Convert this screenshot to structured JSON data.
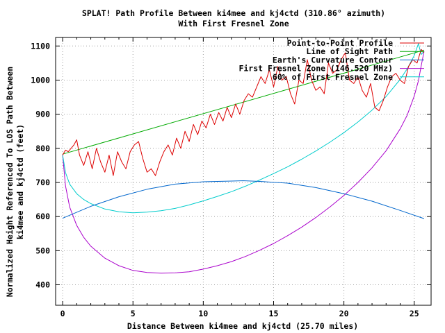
{
  "chart_data": {
    "type": "line",
    "title": "SPLAT! Path Profile Between ki4mee and kj4ctd (310.86° azimuth)",
    "subtitle": "With First Fresnel Zone",
    "xlabel": "Distance Between ki4mee and kj4ctd (25.70 miles)",
    "ylabel_line1": "Normalized Height Referenced To LOS Path Between",
    "ylabel_line2": "ki4mee and kj4ctd (feet)",
    "xlim": [
      -0.5,
      26.2
    ],
    "ylim": [
      340,
      1125
    ],
    "xticks": [
      0,
      5,
      10,
      15,
      20,
      25
    ],
    "yticks": [
      400,
      500,
      600,
      700,
      800,
      900,
      1000,
      1100
    ],
    "grid": true,
    "legend_position": "top-right",
    "colors": {
      "profile": "#dd0000",
      "los": "#00aa00",
      "earth": "#0066cc",
      "fresnel": "#aa00cc",
      "fresnel60": "#00cccc"
    },
    "series": [
      {
        "key": "profile",
        "name": "Point-to-Point Profile",
        "x": [
          0,
          0.2,
          0.4,
          0.6,
          0.8,
          1.0,
          1.2,
          1.5,
          1.8,
          2.1,
          2.4,
          2.7,
          3.0,
          3.3,
          3.6,
          3.9,
          4.2,
          4.5,
          4.8,
          5.1,
          5.4,
          5.7,
          6.0,
          6.3,
          6.6,
          6.9,
          7.2,
          7.5,
          7.8,
          8.1,
          8.4,
          8.7,
          9.0,
          9.3,
          9.6,
          9.9,
          10.2,
          10.5,
          10.8,
          11.1,
          11.4,
          11.7,
          12.0,
          12.3,
          12.6,
          12.9,
          13.2,
          13.5,
          13.8,
          14.1,
          14.4,
          14.7,
          15.0,
          15.3,
          15.6,
          15.9,
          16.2,
          16.5,
          16.8,
          17.1,
          17.4,
          17.7,
          18.0,
          18.3,
          18.6,
          18.9,
          19.2,
          19.5,
          19.8,
          20.1,
          20.4,
          20.7,
          21.0,
          21.3,
          21.6,
          21.9,
          22.2,
          22.5,
          22.8,
          23.1,
          23.4,
          23.7,
          24.0,
          24.3,
          24.6,
          24.9,
          25.2,
          25.5,
          25.7
        ],
        "y": [
          780,
          795,
          790,
          800,
          810,
          825,
          780,
          750,
          790,
          740,
          800,
          760,
          730,
          780,
          720,
          790,
          760,
          740,
          790,
          810,
          820,
          770,
          730,
          740,
          720,
          760,
          790,
          810,
          780,
          830,
          800,
          850,
          820,
          870,
          840,
          880,
          860,
          900,
          870,
          905,
          880,
          920,
          890,
          930,
          900,
          940,
          960,
          950,
          980,
          1010,
          990,
          1030,
          980,
          1040,
          1000,
          1010,
          960,
          930,
          1000,
          990,
          1060,
          1000,
          970,
          980,
          960,
          1050,
          1020,
          1030,
          1060,
          1080,
          1000,
          990,
          1010,
          970,
          950,
          990,
          920,
          910,
          940,
          980,
          1010,
          1020,
          1000,
          990,
          1040,
          1060,
          1050,
          1090,
          1080
        ]
      },
      {
        "key": "los",
        "name": "Line of Sight Path",
        "x": [
          0,
          25.7
        ],
        "y": [
          783,
          1088
        ]
      },
      {
        "key": "earth",
        "name": "Earth's Curvature Contour",
        "x": [
          0,
          2,
          4,
          6,
          8,
          10,
          12,
          12.85,
          14,
          16,
          18,
          20,
          22,
          24,
          25.7
        ],
        "y": [
          595,
          630,
          658,
          680,
          695,
          702,
          704,
          705,
          703,
          698,
          685,
          667,
          645,
          618,
          594
        ]
      },
      {
        "key": "fresnel",
        "name": "First Fresnel Zone (146.520 MHz)",
        "x": [
          0,
          0.2,
          0.5,
          1,
          1.5,
          2,
          3,
          4,
          5,
          6,
          7,
          8,
          9,
          10,
          11,
          12,
          13,
          14,
          15,
          16,
          17,
          18,
          19,
          20,
          21,
          22,
          23,
          24,
          24.5,
          25,
          25.3,
          25.5,
          25.7
        ],
        "y": [
          780,
          690,
          628,
          574,
          539,
          513,
          478,
          456,
          442,
          436,
          434,
          435,
          438,
          446,
          456,
          468,
          483,
          501,
          521,
          544,
          569,
          597,
          628,
          662,
          700,
          743,
          793,
          857,
          897,
          953,
          998,
          1042,
          1085
        ]
      },
      {
        "key": "fresnel60",
        "name": "60% of First Fresnel Zone",
        "x": [
          0,
          0.2,
          0.5,
          1,
          1.5,
          2,
          3,
          4,
          5,
          6,
          7,
          8,
          9,
          10,
          11,
          12,
          13,
          14,
          15,
          16,
          17,
          18,
          19,
          20,
          21,
          22,
          23,
          24,
          24.5,
          25,
          25.3,
          25.5,
          25.7
        ],
        "y": [
          780,
          729,
          695,
          667,
          650,
          638,
          622,
          614,
          611,
          613,
          617,
          624,
          634,
          646,
          659,
          673,
          689,
          707,
          726,
          746,
          768,
          792,
          818,
          846,
          877,
          912,
          952,
          1002,
          1033,
          1072,
          1107,
          1075,
          1085
        ]
      }
    ]
  }
}
